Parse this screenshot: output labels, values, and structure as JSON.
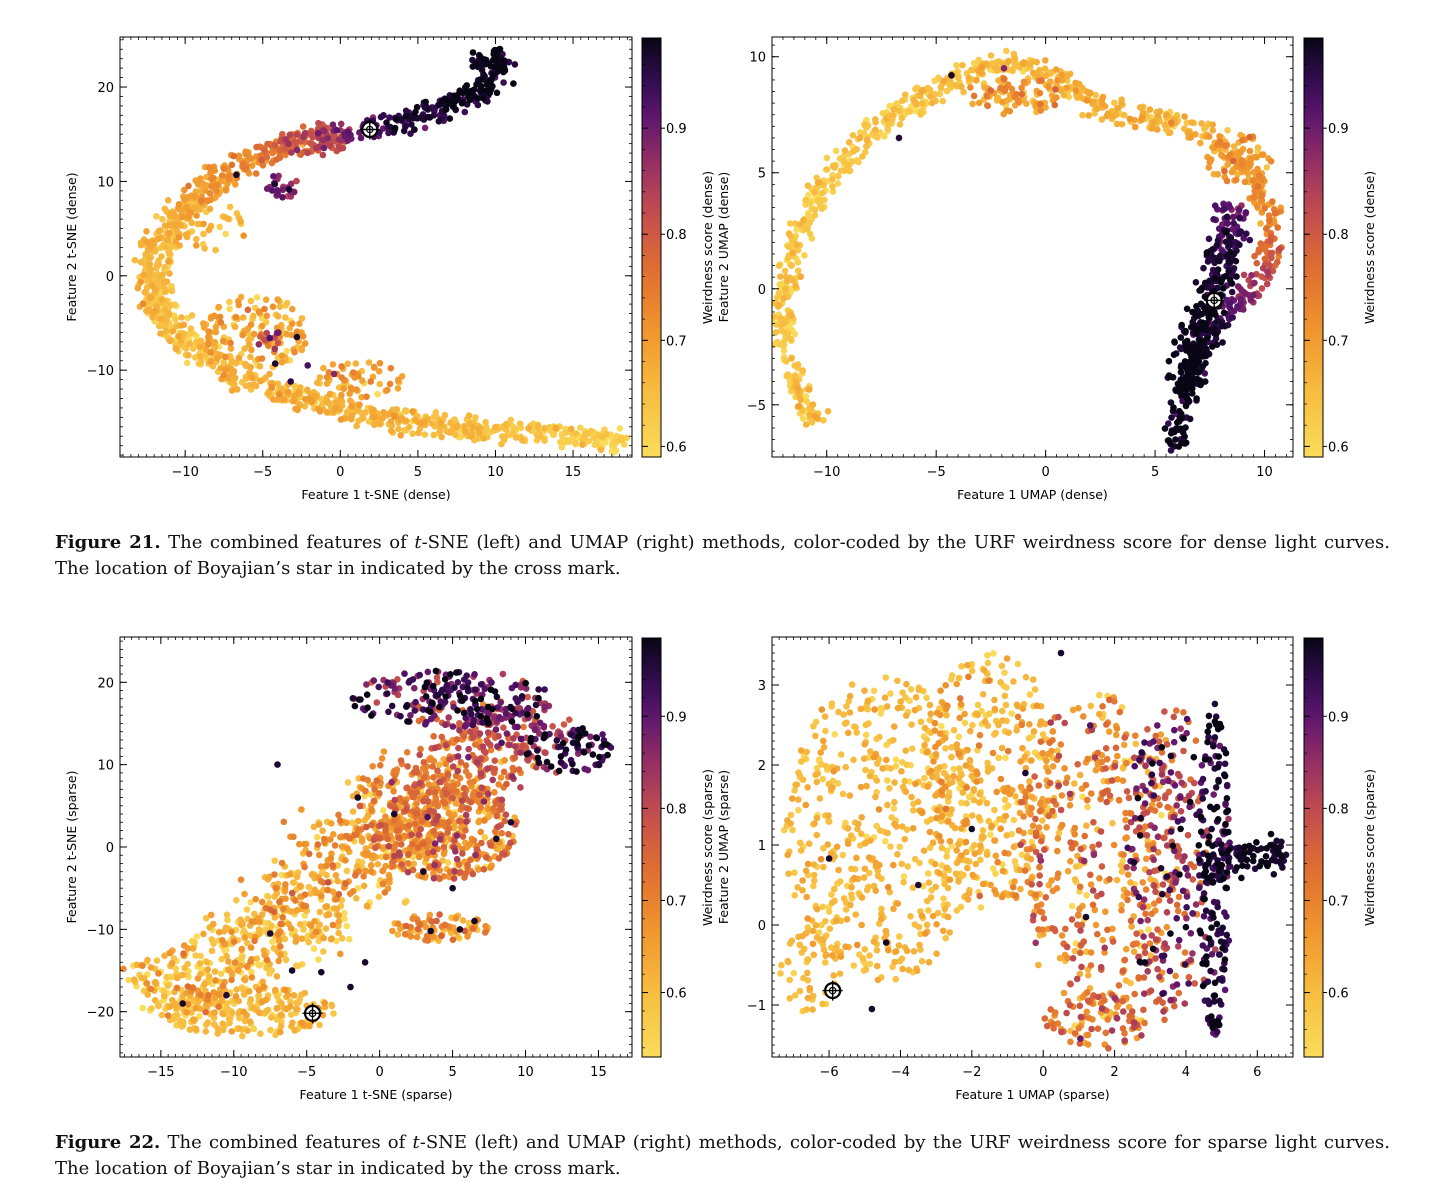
{
  "figures": [
    {
      "id": "fig21",
      "caption_label": "Figure 21.",
      "caption_parts": [
        "The combined features of ",
        "t",
        "-SNE (left) and UMAP (right) methods, color-coded by the URF weirdness score for dense light curves. The location of Boyajian’s star in indicated by the cross mark."
      ]
    },
    {
      "id": "fig22",
      "caption_label": "Figure 22.",
      "caption_parts": [
        "The combined features of ",
        "t",
        "-SNE (left) and UMAP (right) methods, color-coded by the URF weirdness score for sparse light curves. The location of Boyajian’s star in indicated by the cross mark."
      ]
    }
  ],
  "chart_data": [
    {
      "type": "scatter",
      "name": "tsne-dense",
      "xlabel": "Feature 1 t-SNE (dense)",
      "ylabel": "Feature 2 t-SNE (dense)",
      "xlim": [
        -14.2,
        18.8
      ],
      "ylim": [
        -19.2,
        25.3
      ],
      "xticks": [
        -10,
        -5,
        0,
        5,
        10,
        15
      ],
      "yticks": [
        -10,
        0,
        10,
        20
      ],
      "colorbar_label": "Weirdness score (dense)",
      "colorbar_range": [
        0.59,
        0.985
      ],
      "colorbar_ticks": [
        0.6,
        0.7,
        0.8,
        0.9
      ],
      "boyajian_star": [
        1.9,
        15.5
      ],
      "clusters": [
        {
          "kind": "curve",
          "points": [
            [
              18.5,
              -17.7
            ],
            [
              14,
              -16.8
            ],
            [
              9,
              -16.3
            ],
            [
              4,
              -15.5
            ],
            [
              0,
              -13.9
            ],
            [
              -4,
              -12.2
            ],
            [
              -7,
              -10.2
            ],
            [
              -9.5,
              -7.8
            ],
            [
              -11,
              -4.8
            ],
            [
              -12,
              -2
            ],
            [
              -12.2,
              1
            ],
            [
              -11.2,
              4.5
            ],
            [
              -9.6,
              8
            ],
            [
              -7.5,
              10.8
            ],
            [
              -5,
              12.8
            ],
            [
              -2,
              14.4
            ],
            [
              1,
              15.2
            ],
            [
              3,
              16.1
            ],
            [
              6,
              17.4
            ],
            [
              8,
              18.6
            ],
            [
              9.6,
              20.5
            ],
            [
              10,
              22.5
            ],
            [
              9.6,
              24
            ]
          ],
          "count": 1300,
          "spread": 0.6,
          "width": 1.8,
          "score": [
            0.6,
            0.62,
            0.64,
            0.66,
            0.66,
            0.66,
            0.65,
            0.64,
            0.64,
            0.64,
            0.65,
            0.66,
            0.68,
            0.7,
            0.74,
            0.8,
            0.9,
            0.94,
            0.96,
            0.97,
            0.98,
            0.98,
            0.98
          ],
          "score_noise": 0.025
        },
        {
          "kind": "blob",
          "center": [
            -5.5,
            -6
          ],
          "radius": [
            3.5,
            4
          ],
          "count": 150,
          "score": 0.67,
          "score_noise": 0.04
        },
        {
          "kind": "blob",
          "center": [
            -2,
            14
          ],
          "radius": [
            2.5,
            1.2
          ],
          "count": 60,
          "score": 0.8,
          "score_noise": 0.05
        },
        {
          "kind": "blob",
          "center": [
            -3.8,
            9.5
          ],
          "radius": [
            1.2,
            1.3
          ],
          "count": 25,
          "score": 0.9,
          "score_noise": 0.04
        },
        {
          "kind": "blob",
          "center": [
            1.2,
            -11
          ],
          "radius": [
            3,
            2
          ],
          "count": 60,
          "score": 0.68,
          "score_noise": 0.04
        },
        {
          "kind": "blob",
          "center": [
            -8.5,
            5.5
          ],
          "radius": [
            2.5,
            3
          ],
          "count": 40,
          "score": 0.65,
          "score_noise": 0.03
        },
        {
          "kind": "blob",
          "center": [
            -4.5,
            -7
          ],
          "radius": [
            1,
            1.2
          ],
          "count": 12,
          "score": 0.83,
          "score_noise": 0.05
        }
      ],
      "highlights": [
        [
          -4.2,
          -9.3,
          0.97
        ],
        [
          -2.8,
          -6.5,
          0.97
        ],
        [
          -3.2,
          -11.2,
          0.95
        ],
        [
          -0.4,
          -10.4,
          0.88
        ],
        [
          -6.7,
          10.7,
          0.97
        ],
        [
          -2.1,
          -9.5,
          0.93
        ]
      ]
    },
    {
      "type": "scatter",
      "name": "umap-dense",
      "xlabel": "Feature 1 UMAP (dense)",
      "ylabel": "Feature 2 UMAP (dense)",
      "xlim": [
        -12.5,
        11.3
      ],
      "ylim": [
        -7.25,
        10.85
      ],
      "xticks": [
        -10,
        -5,
        0,
        5,
        10
      ],
      "yticks": [
        -5,
        0,
        5,
        10
      ],
      "colorbar_label": "Weirdness score (dense)",
      "colorbar_range": [
        0.59,
        0.985
      ],
      "colorbar_ticks": [
        0.6,
        0.7,
        0.8,
        0.9
      ],
      "boyajian_star": [
        7.7,
        -0.5
      ],
      "clusters": [
        {
          "kind": "curve",
          "points": [
            [
              -10.5,
              -5.8
            ],
            [
              -11.6,
              -3.5
            ],
            [
              -12,
              -1
            ],
            [
              -11.6,
              1.5
            ],
            [
              -10.5,
              4
            ],
            [
              -8.5,
              6.3
            ],
            [
              -6.5,
              7.7
            ],
            [
              -4.5,
              8.8
            ],
            [
              -2.5,
              9.8
            ],
            [
              -0.5,
              9.6
            ],
            [
              1.5,
              8.5
            ],
            [
              2.5,
              7.8
            ],
            [
              4,
              7.4
            ],
            [
              6,
              7.2
            ],
            [
              8,
              6.3
            ],
            [
              9.5,
              4.8
            ],
            [
              10.3,
              3
            ],
            [
              10.2,
              1
            ],
            [
              9,
              -0.5
            ],
            [
              7.5,
              -1.5
            ],
            [
              6.5,
              -3.5
            ],
            [
              6,
              -5.5
            ],
            [
              6,
              -6.8
            ]
          ],
          "count": 1000,
          "spread": 0.25,
          "width": 0.8,
          "score": [
            0.64,
            0.63,
            0.62,
            0.62,
            0.62,
            0.62,
            0.63,
            0.63,
            0.64,
            0.65,
            0.66,
            0.67,
            0.66,
            0.65,
            0.68,
            0.7,
            0.74,
            0.8,
            0.88,
            0.95,
            0.97,
            0.98,
            0.98
          ],
          "score_noise": 0.025
        },
        {
          "kind": "curve",
          "points": [
            [
              8.5,
              3.5
            ],
            [
              8.3,
              1.5
            ],
            [
              7.5,
              -0.5
            ],
            [
              6.8,
              -2.5
            ],
            [
              6.3,
              -4.5
            ]
          ],
          "count": 300,
          "spread": 0.45,
          "width": 1.2,
          "score": [
            0.9,
            0.95,
            0.97,
            0.98,
            0.98
          ],
          "score_noise": 0.02
        },
        {
          "kind": "blob",
          "center": [
            -1.5,
            8.4
          ],
          "radius": [
            2.3,
            0.9
          ],
          "count": 90,
          "score": 0.7,
          "score_noise": 0.04
        },
        {
          "kind": "blob",
          "center": [
            8.8,
            5.5
          ],
          "radius": [
            1.5,
            1.2
          ],
          "count": 60,
          "score": 0.7,
          "score_noise": 0.04
        }
      ],
      "highlights": [
        [
          -4.3,
          9.2,
          0.97
        ],
        [
          -1.9,
          9.5,
          0.88
        ],
        [
          -6.7,
          6.5,
          0.96
        ]
      ]
    },
    {
      "type": "scatter",
      "name": "tsne-sparse",
      "xlabel": "Feature 1 t-SNE (sparse)",
      "ylabel": "Feature 2 t-SNE (sparse)",
      "xlim": [
        -17.8,
        17.3
      ],
      "ylim": [
        -25.5,
        25.5
      ],
      "xticks": [
        -15,
        -10,
        -5,
        0,
        5,
        10,
        15
      ],
      "yticks": [
        -20,
        -10,
        0,
        10,
        20
      ],
      "colorbar_label": "Weirdness score (sparse)",
      "colorbar_range": [
        0.53,
        0.985
      ],
      "colorbar_ticks": [
        0.6,
        0.7,
        0.8,
        0.9
      ],
      "boyajian_star": [
        -4.6,
        -20.2
      ],
      "clusters": [
        {
          "kind": "curve",
          "points": [
            [
              -16,
              -18.5
            ],
            [
              -12,
              -16
            ],
            [
              -8,
              -12
            ],
            [
              -4,
              -5
            ],
            [
              0,
              3
            ],
            [
              4,
              8
            ],
            [
              8,
              12
            ],
            [
              11,
              16
            ]
          ],
          "count": 1100,
          "spread": 2.2,
          "width": 6.5,
          "score": [
            0.59,
            0.6,
            0.6,
            0.63,
            0.66,
            0.7,
            0.76,
            0.85
          ],
          "score_noise": 0.06
        },
        {
          "kind": "blob",
          "center": [
            -9,
            -20
          ],
          "radius": [
            6,
            3
          ],
          "count": 220,
          "score": 0.6,
          "score_noise": 0.03
        },
        {
          "kind": "blob",
          "center": [
            4.5,
            2
          ],
          "radius": [
            5,
            6
          ],
          "count": 400,
          "score": 0.68,
          "score_noise": 0.08
        },
        {
          "kind": "blob",
          "center": [
            5,
            18
          ],
          "radius": [
            7,
            3.5
          ],
          "count": 220,
          "score": 0.9,
          "score_noise": 0.08
        },
        {
          "kind": "blob",
          "center": [
            13,
            12
          ],
          "radius": [
            3,
            3
          ],
          "count": 70,
          "score": 0.96,
          "score_noise": 0.05
        },
        {
          "kind": "blob",
          "center": [
            4,
            -9.8
          ],
          "radius": [
            3.5,
            1.6
          ],
          "count": 80,
          "score": 0.65,
          "score_noise": 0.05
        }
      ],
      "highlights": [
        [
          3.5,
          -10.2,
          0.97
        ],
        [
          5.5,
          -10,
          0.97
        ],
        [
          -13.5,
          -19,
          0.97
        ],
        [
          -10.5,
          -18,
          0.96
        ],
        [
          -7.5,
          -10.5,
          0.96
        ],
        [
          -4,
          -15.2,
          0.97
        ],
        [
          -2,
          -17,
          0.97
        ],
        [
          -1,
          -14,
          0.97
        ],
        [
          6.5,
          -9,
          0.97
        ],
        [
          -1.5,
          6,
          0.97
        ],
        [
          1,
          4,
          0.97
        ],
        [
          3,
          -3,
          0.97
        ],
        [
          5,
          -5,
          0.97
        ],
        [
          8,
          1,
          0.97
        ],
        [
          9,
          3,
          0.97
        ],
        [
          -7,
          10,
          0.96
        ],
        [
          -6,
          -15,
          0.97
        ],
        [
          -4.8,
          -20.2,
          0.97
        ]
      ]
    },
    {
      "type": "scatter",
      "name": "umap-sparse",
      "xlabel": "Feature 1 UMAP (sparse)",
      "ylabel": "Feature 2 UMAP (sparse)",
      "xlim": [
        -7.6,
        7.0
      ],
      "ylim": [
        -1.65,
        3.6
      ],
      "xticks": [
        -6,
        -4,
        -2,
        0,
        2,
        4,
        6
      ],
      "yticks": [
        -1,
        0,
        1,
        2,
        3
      ],
      "colorbar_label": "Weirdness score (sparse)",
      "colorbar_range": [
        0.53,
        0.985
      ],
      "colorbar_ticks": [
        0.6,
        0.7,
        0.8,
        0.9
      ],
      "boyajian_star": [
        -5.9,
        -0.82
      ],
      "clusters": [
        {
          "kind": "blob",
          "center": [
            -4.5,
            1.2
          ],
          "radius": [
            2.8,
            1.9
          ],
          "count": 520,
          "score": 0.6,
          "score_noise": 0.03
        },
        {
          "kind": "blob",
          "center": [
            -1.5,
            1.8
          ],
          "radius": [
            2,
            1.6
          ],
          "count": 350,
          "score": 0.62,
          "score_noise": 0.05
        },
        {
          "kind": "blob",
          "center": [
            1.5,
            0.9
          ],
          "radius": [
            2.3,
            2.0
          ],
          "count": 430,
          "score": 0.69,
          "score_noise": 0.08
        },
        {
          "kind": "blob",
          "center": [
            3.5,
            0.8
          ],
          "radius": [
            1.2,
            2.0
          ],
          "count": 260,
          "score": 0.82,
          "score_noise": 0.1
        },
        {
          "kind": "blob",
          "center": [
            4.8,
            0.7
          ],
          "radius": [
            0.45,
            2.1
          ],
          "count": 190,
          "score": 0.95,
          "score_noise": 0.05
        },
        {
          "kind": "curve",
          "points": [
            [
              4.6,
              0.7
            ],
            [
              5.3,
              0.8
            ],
            [
              6,
              0.85
            ],
            [
              6.8,
              0.9
            ]
          ],
          "count": 90,
          "spread": 0.1,
          "width": 0.3,
          "score": [
            0.96,
            0.97,
            0.97,
            0.97
          ],
          "score_noise": 0.02
        },
        {
          "kind": "blob",
          "center": [
            -6.5,
            -0.5
          ],
          "radius": [
            0.9,
            0.6
          ],
          "count": 60,
          "score": 0.6,
          "score_noise": 0.02
        },
        {
          "kind": "blob",
          "center": [
            1.5,
            -1.2
          ],
          "radius": [
            1.5,
            0.35
          ],
          "count": 90,
          "score": 0.7,
          "score_noise": 0.08
        }
      ],
      "highlights": [
        [
          -6,
          0.83,
          0.97
        ],
        [
          -4.4,
          -0.22,
          0.97
        ],
        [
          -4.8,
          -1.05,
          0.97
        ],
        [
          -3.5,
          0.5,
          0.96
        ],
        [
          -2,
          1.2,
          0.97
        ],
        [
          1.2,
          0.1,
          0.97
        ],
        [
          -0.5,
          1.9,
          0.96
        ],
        [
          0.5,
          3.4,
          0.97
        ]
      ]
    }
  ]
}
